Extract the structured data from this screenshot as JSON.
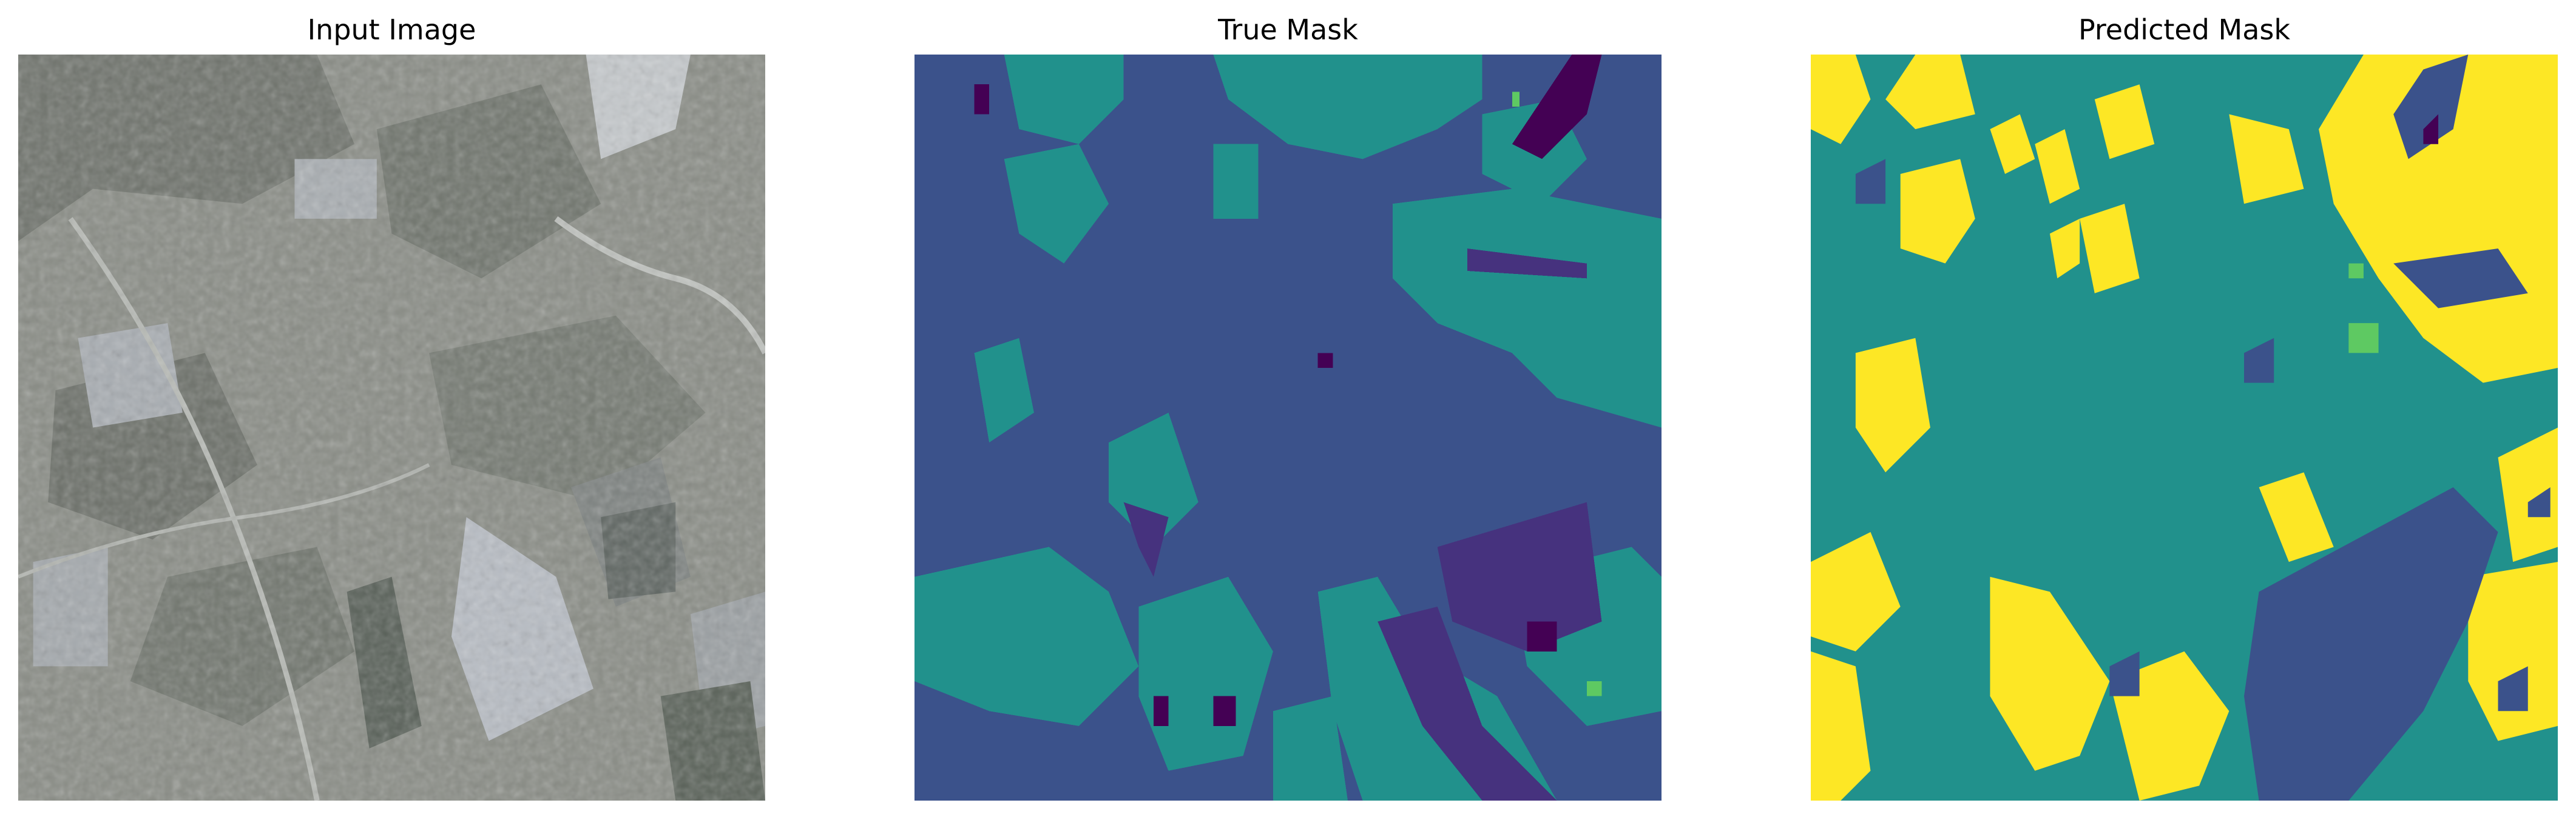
{
  "panels": [
    {
      "title": "Input Image"
    },
    {
      "title": "True Mask"
    },
    {
      "title": "Predicted Mask"
    }
  ],
  "colors": {
    "viridis_0": "#440154",
    "viridis_1": "#3b528b",
    "viridis_2": "#21918c",
    "viridis_3": "#5ec962",
    "viridis_4": "#fde725",
    "input_base": "#8a8d86",
    "input_dark": "#4f5650",
    "input_field": "#b8bdc4"
  }
}
